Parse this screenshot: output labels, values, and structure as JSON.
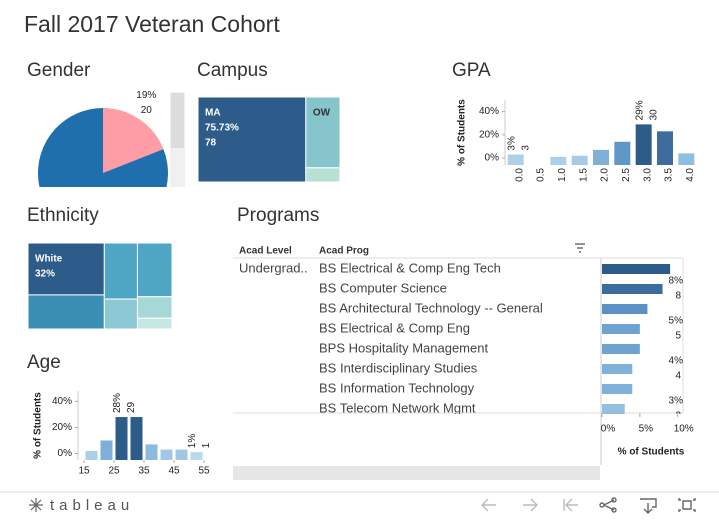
{
  "title": "Fall 2017 Veteran Cohort",
  "chart_data": [
    {
      "type": "pie",
      "title": "Gender",
      "values": [
        19,
        81
      ],
      "colors": [
        "#ff9da7",
        "#1f6fad"
      ],
      "value_labels": [
        "19%",
        null
      ],
      "counts": [
        20,
        null
      ]
    },
    {
      "type": "treemap",
      "title": "Campus",
      "categories": [
        "MA",
        "OW",
        null
      ],
      "values": [
        75.73,
        20,
        4
      ],
      "value_labels": [
        "75.73%",
        null,
        null
      ],
      "counts": [
        78,
        null,
        null
      ],
      "colors": [
        "#2e5c8a",
        "#86c5cc",
        "#b8e0d4"
      ]
    },
    {
      "type": "bar",
      "title": "GPA",
      "y_label": "% of Students",
      "categories": [
        "0.0",
        "0.5",
        "1.0",
        "1.5",
        "2.0",
        "2.5",
        "3.0",
        "3.5",
        "4.0"
      ],
      "values": [
        3,
        null,
        1,
        2,
        7,
        14,
        29,
        23,
        4
      ],
      "value_labels": [
        "3%",
        null,
        null,
        null,
        null,
        null,
        "29%",
        null,
        null
      ],
      "counts": [
        3,
        null,
        null,
        null,
        null,
        null,
        30,
        null,
        null
      ],
      "colors": [
        "#aad0ea",
        null,
        "#aad0ea",
        "#a6cbe6",
        "#7fb1d8",
        "#5f97c9",
        "#2e5c8a",
        "#3d6d9e",
        "#8fbfe0"
      ],
      "ylim": [
        -6,
        50
      ],
      "yticks": [
        {
          "value": 0,
          "label": "0%"
        },
        {
          "value": 20,
          "label": "20%"
        },
        {
          "value": 40,
          "label": "40%"
        }
      ]
    },
    {
      "type": "treemap",
      "title": "Ethnicity",
      "categories": [
        "White",
        null,
        null,
        null,
        null,
        null,
        null
      ],
      "values": [
        32,
        21,
        15,
        8,
        15,
        6,
        3
      ],
      "value_labels": [
        "32%",
        null,
        null,
        null,
        null,
        null,
        null
      ],
      "counts": [
        null,
        null,
        null,
        null,
        null,
        null,
        null
      ],
      "colors": [
        "#2e5c8a",
        "#3a8db3",
        "#4ea5c4",
        "#8cc8d4",
        "#4ea5c4",
        "#a6d8d8",
        "#c6e8e2"
      ]
    },
    {
      "type": "barh",
      "title": "Programs",
      "headers": [
        "Acad Level",
        "Acad Prog"
      ],
      "level": "Undergrad..",
      "x_label": "% of Students",
      "categories": [
        "BS Electrical & Comp Eng Tech",
        "BS Computer Science",
        "BS Architectural Technology -- General",
        "BS Electrical & Comp Eng",
        "BPS Hospitality Management",
        "BS Interdisciplinary Studies",
        "BS Information Technology",
        "BS Telecom Network Mgmt"
      ],
      "values": [
        9,
        8,
        6,
        5,
        5,
        4,
        4,
        3
      ],
      "value_labels": [
        null,
        "8%",
        null,
        "5%",
        null,
        "4%",
        null,
        "3%"
      ],
      "counts": [
        null,
        8,
        null,
        5,
        null,
        4,
        null,
        3
      ],
      "colors": [
        "#2e5c8a",
        "#3a6c9e",
        "#5b91c4",
        "#6ea3cf",
        "#6ea3cf",
        "#80b1d8",
        "#80b1d8",
        "#93bfe0"
      ],
      "xlim": [
        0,
        10.7
      ],
      "xticks": [
        {
          "value": 0,
          "label": "0%"
        },
        {
          "value": 5,
          "label": "5%"
        },
        {
          "value": 10,
          "label": "10%"
        }
      ]
    },
    {
      "type": "histogram",
      "title": "Age",
      "y_label": "% of Students",
      "bins": [
        15,
        20,
        25,
        30,
        35,
        40,
        45,
        50,
        55
      ],
      "values": [
        2,
        10,
        28,
        28,
        7,
        3,
        3,
        1
      ],
      "value_labels": [
        null,
        null,
        "28%",
        null,
        null,
        null,
        null,
        "1%"
      ],
      "counts": [
        null,
        null,
        29,
        null,
        null,
        null,
        null,
        1
      ],
      "colors": [
        "#a9cfe9",
        "#7eb0d7",
        "#2e5c8a",
        "#2e5c8a",
        "#8dbbe0",
        "#a0c8e6",
        "#a0c8e6",
        "#b8d9ee"
      ],
      "xlim": [
        13,
        57
      ],
      "xticks": [
        15,
        25,
        35,
        45,
        55
      ],
      "ylim": [
        -5,
        48
      ],
      "yticks": [
        {
          "value": 0,
          "label": "0%"
        },
        {
          "value": 20,
          "label": "20%"
        },
        {
          "value": 40,
          "label": "40%"
        }
      ]
    }
  ],
  "toolbar": {
    "logo": "tableau"
  }
}
